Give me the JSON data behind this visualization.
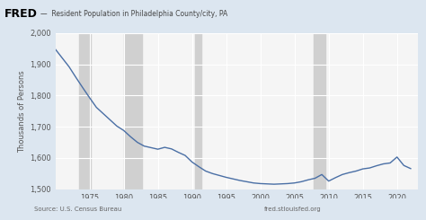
{
  "title": "Resident Population in Philadelphia County/city, PA",
  "ylabel": "Thousands of Persons",
  "source_left": "Source: U.S. Census Bureau",
  "source_right": "fred.stlouisfed.org",
  "line_color": "#4a6fa5",
  "header_bg": "#dce6f0",
  "background_color": "#dce6f0",
  "plot_bg_color": "#f5f5f5",
  "shade_color": "#d0d0d0",
  "ylim": [
    1500,
    2000
  ],
  "yticks": [
    1500,
    1600,
    1700,
    1800,
    1900,
    2000
  ],
  "ytick_labels": [
    "1,500",
    "1,600",
    "1,700",
    "1,800",
    "1,900",
    "2,000"
  ],
  "shade_bands": [
    [
      1973.5,
      1975.2
    ],
    [
      1980.0,
      1982.7
    ],
    [
      1990.5,
      1991.3
    ],
    [
      2007.8,
      2009.5
    ]
  ],
  "xlim": [
    1970,
    2023
  ],
  "xticks": [
    1975,
    1980,
    1985,
    1990,
    1995,
    2000,
    2005,
    2010,
    2015,
    2020
  ],
  "years": [
    1970,
    1971,
    1972,
    1973,
    1974,
    1975,
    1976,
    1977,
    1978,
    1979,
    1980,
    1981,
    1982,
    1983,
    1984,
    1985,
    1986,
    1987,
    1988,
    1989,
    1990,
    1991,
    1992,
    1993,
    1994,
    1995,
    1996,
    1997,
    1998,
    1999,
    2000,
    2001,
    2002,
    2003,
    2004,
    2005,
    2006,
    2007,
    2008,
    2009,
    2010,
    2011,
    2012,
    2013,
    2014,
    2015,
    2016,
    2017,
    2018,
    2019,
    2020,
    2021,
    2022
  ],
  "values": [
    1948,
    1920,
    1892,
    1858,
    1825,
    1793,
    1762,
    1742,
    1722,
    1702,
    1688,
    1668,
    1650,
    1638,
    1633,
    1628,
    1634,
    1629,
    1618,
    1608,
    1587,
    1572,
    1558,
    1550,
    1544,
    1538,
    1533,
    1528,
    1524,
    1520,
    1518,
    1517,
    1516,
    1517,
    1518,
    1520,
    1524,
    1530,
    1535,
    1547,
    1526,
    1537,
    1547,
    1553,
    1558,
    1565,
    1568,
    1575,
    1581,
    1584,
    1603,
    1576,
    1566
  ]
}
